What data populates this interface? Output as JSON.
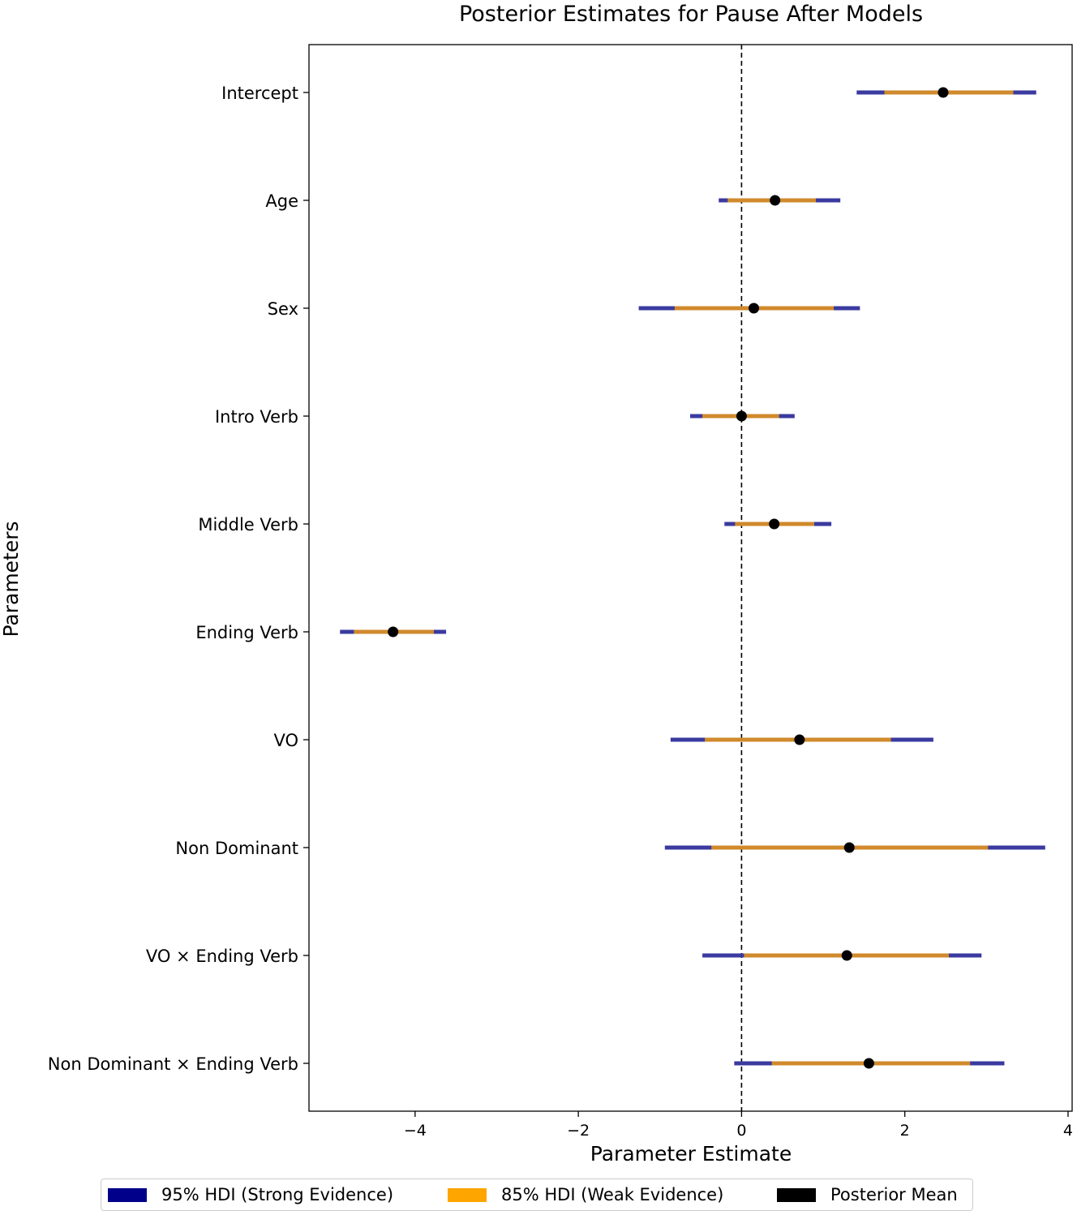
{
  "chart_data": {
    "type": "forest",
    "title": "Posterior Estimates for Pause After Models",
    "xlabel": "Parameter Estimate",
    "ylabel": "Parameters",
    "xlim": [
      -5.3,
      4.05
    ],
    "xticks": [
      -4,
      -2,
      0,
      2,
      4
    ],
    "xtick_labels": [
      "−4",
      "−2",
      "0",
      "2",
      "4"
    ],
    "reference_line": 0,
    "parameters": [
      {
        "name": "Intercept",
        "hdi95": [
          1.41,
          3.61
        ],
        "hdi85": [
          1.75,
          3.33
        ],
        "mean": 2.47
      },
      {
        "name": "Age",
        "hdi95": [
          -0.28,
          1.21
        ],
        "hdi85": [
          -0.17,
          0.91
        ],
        "mean": 0.41
      },
      {
        "name": "Sex",
        "hdi95": [
          -1.26,
          1.45
        ],
        "hdi85": [
          -0.82,
          1.13
        ],
        "mean": 0.15
      },
      {
        "name": "Intro Verb",
        "hdi95": [
          -0.63,
          0.65
        ],
        "hdi85": [
          -0.48,
          0.46
        ],
        "mean": 0.0
      },
      {
        "name": "Middle Verb",
        "hdi95": [
          -0.21,
          1.1
        ],
        "hdi85": [
          -0.08,
          0.89
        ],
        "mean": 0.4
      },
      {
        "name": "Ending Verb",
        "hdi95": [
          -4.92,
          -3.62
        ],
        "hdi85": [
          -4.75,
          -3.77
        ],
        "mean": -4.27
      },
      {
        "name": "VO",
        "hdi95": [
          -0.87,
          2.35
        ],
        "hdi85": [
          -0.45,
          1.83
        ],
        "mean": 0.71
      },
      {
        "name": "Non Dominant",
        "hdi95": [
          -0.94,
          3.72
        ],
        "hdi85": [
          -0.37,
          3.02
        ],
        "mean": 1.32
      },
      {
        "name": "VO × Ending Verb",
        "hdi95": [
          -0.48,
          2.94
        ],
        "hdi85": [
          0.03,
          2.54
        ],
        "mean": 1.29
      },
      {
        "name": "Non Dominant × Ending Verb",
        "hdi95": [
          -0.09,
          3.22
        ],
        "hdi85": [
          0.37,
          2.8
        ],
        "mean": 1.56
      }
    ],
    "legend": [
      {
        "label": "95% HDI (Strong Evidence)",
        "color": "#00008b"
      },
      {
        "label": "85% HDI (Weak Evidence)",
        "color": "#ffa500"
      },
      {
        "label": "Posterior Mean",
        "color": "#000000"
      }
    ],
    "colors": {
      "hdi95_line": "#3a3aa0",
      "hdi85_line": "#d08a2c",
      "mean": "#000000"
    }
  }
}
